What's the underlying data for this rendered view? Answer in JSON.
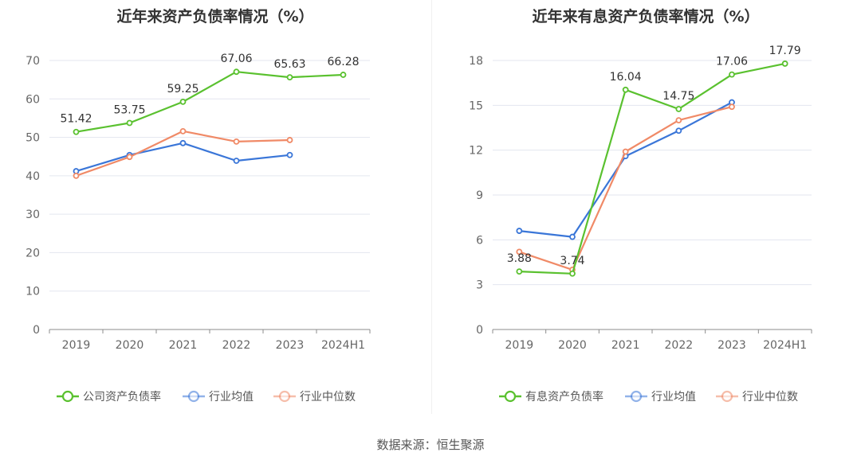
{
  "chart_data": [
    {
      "type": "line",
      "title": "近年来资产负债率情况（%）",
      "categories": [
        "2019",
        "2020",
        "2021",
        "2022",
        "2023",
        "2024H1"
      ],
      "ylim": [
        0,
        70
      ],
      "yticks": [
        0,
        10,
        20,
        30,
        40,
        50,
        60,
        70
      ],
      "grid": true,
      "legend_position": "bottom",
      "series": [
        {
          "name": "公司资产负债率",
          "color": "#5ac12f",
          "labels": true,
          "values": [
            51.42,
            53.75,
            59.25,
            67.06,
            65.63,
            66.28
          ]
        },
        {
          "name": "行业均值",
          "color": "#3a76d8",
          "labels": false,
          "values": [
            41.2,
            45.4,
            48.5,
            43.9,
            45.4,
            null
          ]
        },
        {
          "name": "行业中位数",
          "color": "#f08a67",
          "labels": false,
          "values": [
            40.0,
            44.9,
            51.6,
            48.9,
            49.3,
            null
          ]
        }
      ]
    },
    {
      "type": "line",
      "title": "近年来有息资产负债率情况（%）",
      "categories": [
        "2019",
        "2020",
        "2021",
        "2022",
        "2023",
        "2024H1"
      ],
      "ylim": [
        0,
        18
      ],
      "yticks": [
        0,
        3,
        6,
        9,
        12,
        15,
        18
      ],
      "grid": true,
      "legend_position": "bottom",
      "series": [
        {
          "name": "有息资产负债率",
          "color": "#5ac12f",
          "labels": true,
          "values": [
            3.88,
            3.74,
            16.04,
            14.75,
            17.06,
            17.79
          ]
        },
        {
          "name": "行业均值",
          "color": "#3a76d8",
          "labels": false,
          "values": [
            6.6,
            6.2,
            11.6,
            13.3,
            15.2,
            null
          ]
        },
        {
          "name": "行业中位数",
          "color": "#f08a67",
          "labels": false,
          "values": [
            5.2,
            4.0,
            11.9,
            14.0,
            14.9,
            null
          ]
        }
      ]
    }
  ],
  "source": "数据来源：恒生聚源",
  "legend_icons": [
    "line-circle-icon",
    "line-circle-icon",
    "line-circle-icon"
  ]
}
